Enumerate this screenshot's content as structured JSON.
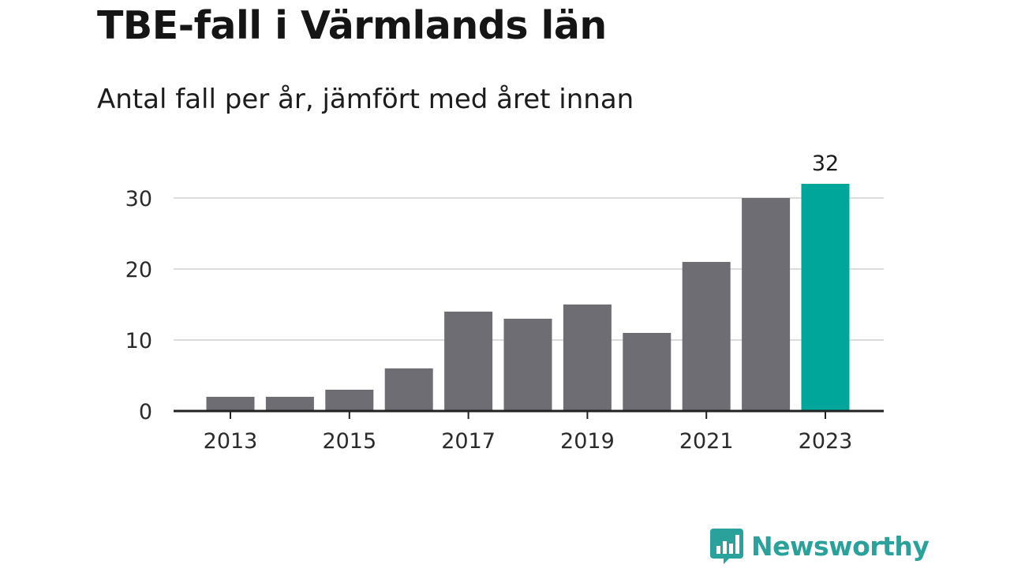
{
  "chart_data": {
    "type": "bar",
    "title": "TBE-fall i Värmlands län",
    "subtitle": "Antal fall per år, jämfört med året innan",
    "categories": [
      "2013",
      "2014",
      "2015",
      "2016",
      "2017",
      "2018",
      "2019",
      "2020",
      "2021",
      "2022",
      "2023"
    ],
    "values": [
      2,
      2,
      3,
      6,
      14,
      13,
      15,
      11,
      21,
      30,
      32
    ],
    "x_tick_labels": [
      "2013",
      "2015",
      "2017",
      "2019",
      "2021",
      "2023"
    ],
    "y_ticks": [
      0,
      10,
      20,
      30
    ],
    "ylim": [
      0,
      32
    ],
    "grid": true,
    "highlight": {
      "category": "2023",
      "label": "32"
    },
    "colors": {
      "bar": "#6e6d73",
      "highlight": "#00a69a",
      "grid": "#dcdcdc",
      "axis": "#222222"
    }
  },
  "brand": {
    "name": "Newsworthy",
    "color": "#2aa19a",
    "icon": "bar-chart-speech-bubble-icon"
  }
}
